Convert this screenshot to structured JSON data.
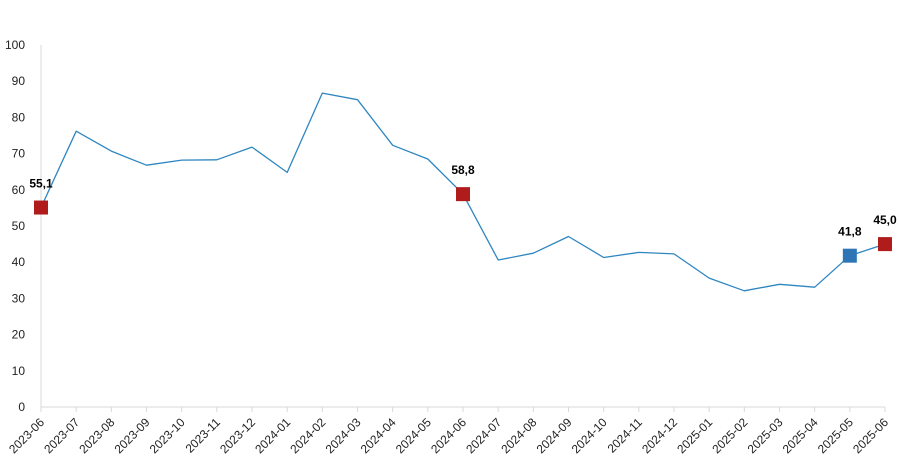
{
  "chart_data": {
    "type": "line",
    "title": "",
    "xlabel": "",
    "ylabel": "",
    "ylim": [
      0,
      100
    ],
    "yticks": [
      0,
      10,
      20,
      30,
      40,
      50,
      60,
      70,
      80,
      90,
      100
    ],
    "grid": false,
    "categories": [
      "2023-06",
      "2023-07",
      "2023-08",
      "2023-09",
      "2023-10",
      "2023-11",
      "2023-12",
      "2024-01",
      "2024-02",
      "2024-03",
      "2024-04",
      "2024-05",
      "2024-06",
      "2024-07",
      "2024-08",
      "2024-09",
      "2024-10",
      "2024-11",
      "2024-12",
      "2025-01",
      "2025-02",
      "2025-03",
      "2025-04",
      "2025-05",
      "2025-06"
    ],
    "series": [
      {
        "values": [
          55.1,
          76.2,
          70.7,
          66.8,
          68.2,
          68.3,
          71.8,
          64.8,
          86.7,
          84.9,
          72.3,
          68.5,
          58.8,
          40.6,
          42.5,
          47.1,
          41.3,
          42.7,
          42.3,
          35.6,
          32.1,
          33.9,
          33.1,
          41.8,
          45.0
        ],
        "color": "#2e86c1"
      }
    ],
    "highlighted_points": [
      {
        "category": "2023-06",
        "value": 55.1,
        "label": "55,1",
        "color": "#b01c1c"
      },
      {
        "category": "2024-06",
        "value": 58.8,
        "label": "58,8",
        "color": "#b01c1c"
      },
      {
        "category": "2025-05",
        "value": 41.8,
        "label": "41,8",
        "color": "#2e75b6"
      },
      {
        "category": "2025-06",
        "value": 45.0,
        "label": "45,0",
        "color": "#b01c1c"
      }
    ],
    "axis_color": "#d9d9d9",
    "text_color": "#222222"
  }
}
